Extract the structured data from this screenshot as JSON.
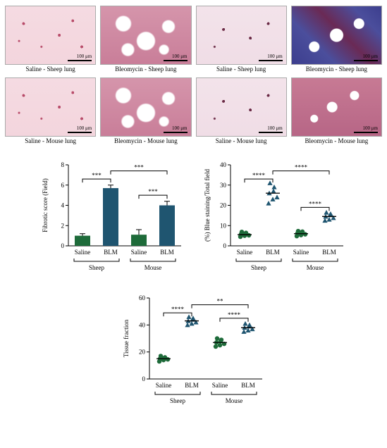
{
  "scalebar_label": "100 μm",
  "histology": {
    "captions": [
      "Saline - Sheep lung",
      "Bleomycin - Sheep lung",
      "Saline - Sheep lung",
      "Bleomycin - Sheep lung",
      "Saline - Mouse lung",
      "Bleomycin - Mouse lung",
      "Saline - Mouse lung",
      "Bleomycin - Mouse lung"
    ]
  },
  "chart_colors": {
    "saline_fill": "#1e6b3a",
    "blm_fill": "#1f5570",
    "axis": "#000000",
    "tick": "#000000",
    "text": "#000000"
  },
  "group_labels": {
    "saline": "Saline",
    "blm": "BLM",
    "sheep": "Sheep",
    "mouse": "Mouse"
  },
  "sig": {
    "two": "**",
    "three": "***",
    "four": "****"
  },
  "chart_A": {
    "type": "bar",
    "ylabel": "Fibrotic score (Field)",
    "ylim": [
      0,
      8
    ],
    "ytick_step": 2,
    "bars": [
      {
        "label": "Saline",
        "group": "Sheep",
        "value": 1.0,
        "err": 0.2,
        "color": "#1e6b3a"
      },
      {
        "label": "BLM",
        "group": "Sheep",
        "value": 5.7,
        "err": 0.3,
        "color": "#1f5570"
      },
      {
        "label": "Saline",
        "group": "Mouse",
        "value": 1.1,
        "err": 0.5,
        "color": "#1e6b3a"
      },
      {
        "label": "BLM",
        "group": "Mouse",
        "value": 4.0,
        "err": 0.4,
        "color": "#1f5570"
      }
    ],
    "sig_brackets": [
      {
        "from": 0,
        "to": 1,
        "label": "***",
        "y": 6.6
      },
      {
        "from": 2,
        "to": 3,
        "label": "***",
        "y": 5.0
      },
      {
        "from": 1,
        "to": 3,
        "label": "***",
        "y": 7.4
      }
    ]
  },
  "chart_B": {
    "type": "scatter",
    "ylabel": "(%) Blue staining/Total field",
    "ylim": [
      0,
      40
    ],
    "ytick_step": 10,
    "groups": [
      {
        "label": "Saline",
        "group": "Sheep",
        "marker": "circle",
        "color": "#1e6b3a",
        "mean": 5.5,
        "points": [
          4.5,
          5.0,
          5.2,
          5.8,
          6.1,
          6.4,
          6.9
        ]
      },
      {
        "label": "BLM",
        "group": "Sheep",
        "marker": "triangle",
        "color": "#1f5570",
        "mean": 26.0,
        "points": [
          21,
          23,
          24,
          26,
          27,
          29,
          31
        ]
      },
      {
        "label": "Saline",
        "group": "Mouse",
        "marker": "circle",
        "color": "#1e6b3a",
        "mean": 6.0,
        "points": [
          4.8,
          5.3,
          5.7,
          6.2,
          6.6,
          7.0,
          7.3
        ]
      },
      {
        "label": "BLM",
        "group": "Mouse",
        "marker": "triangle",
        "color": "#1f5570",
        "mean": 14.5,
        "points": [
          12.5,
          13.0,
          13.8,
          14.5,
          15.2,
          15.8,
          16.5
        ]
      }
    ],
    "sig_brackets": [
      {
        "from": 0,
        "to": 1,
        "label": "****",
        "y": 33
      },
      {
        "from": 2,
        "to": 3,
        "label": "****",
        "y": 19
      },
      {
        "from": 1,
        "to": 3,
        "label": "****",
        "y": 37
      }
    ]
  },
  "chart_C": {
    "type": "scatter",
    "ylabel": "Tissue fraction",
    "ylim": [
      0,
      60
    ],
    "ytick_step": 20,
    "groups": [
      {
        "label": "Saline",
        "group": "Sheep",
        "marker": "circle",
        "color": "#1e6b3a",
        "mean": 15,
        "points": [
          13,
          14,
          14.5,
          15,
          15.5,
          16,
          17
        ]
      },
      {
        "label": "BLM",
        "group": "Sheep",
        "marker": "triangle",
        "color": "#1f5570",
        "mean": 43,
        "points": [
          40,
          41,
          42,
          43,
          44,
          45,
          46
        ]
      },
      {
        "label": "Saline",
        "group": "Mouse",
        "marker": "circle",
        "color": "#1e6b3a",
        "mean": 27,
        "points": [
          24,
          25,
          26,
          27,
          28,
          29,
          30
        ]
      },
      {
        "label": "BLM",
        "group": "Mouse",
        "marker": "triangle",
        "color": "#1f5570",
        "mean": 38,
        "points": [
          35,
          36,
          37,
          38,
          39,
          40,
          41
        ]
      }
    ],
    "sig_brackets": [
      {
        "from": 0,
        "to": 1,
        "label": "****",
        "y": 49
      },
      {
        "from": 2,
        "to": 3,
        "label": "****",
        "y": 45
      },
      {
        "from": 1,
        "to": 3,
        "label": "**",
        "y": 55
      }
    ]
  }
}
